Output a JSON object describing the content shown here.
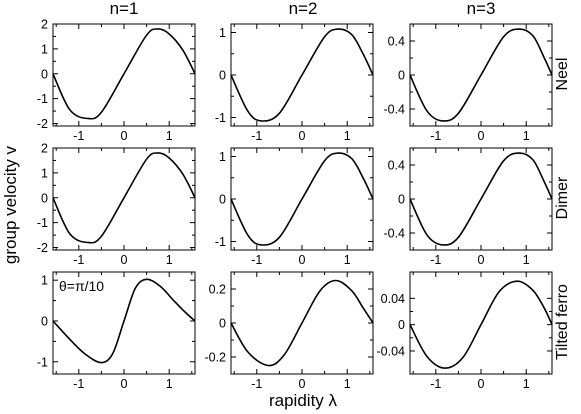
{
  "figure": {
    "ylabel": "group velocity v",
    "xlabel": "rapidity λ",
    "column_titles": [
      "n=1",
      "n=2",
      "n=3"
    ],
    "row_titles": [
      "Neel",
      "Dimer",
      "Tilted ferro"
    ]
  },
  "chart_data": [
    {
      "type": "line",
      "row": "Neel",
      "col": "n=1",
      "xlim": [
        -1.5708,
        1.5708
      ],
      "ylim": [
        -2.1,
        2.0
      ],
      "xticks": [
        -1,
        0,
        1
      ],
      "xtick_labels": [
        "-1",
        "0",
        "1"
      ],
      "yticks": [
        -2,
        -1,
        0,
        1,
        2
      ],
      "ytick_labels": [
        "-2",
        "-1",
        "0",
        "1",
        "2"
      ],
      "series": [
        {
          "x": [
            -1.571,
            -1.2,
            -0.8,
            -0.5,
            0,
            0.5,
            0.75,
            1.0,
            1.3,
            1.571
          ],
          "y": [
            0,
            -1.45,
            -1.8,
            -1.55,
            0,
            1.55,
            1.8,
            1.6,
            0.95,
            0
          ],
          "color": "#000000"
        }
      ]
    },
    {
      "type": "line",
      "row": "Neel",
      "col": "n=2",
      "xlim": [
        -1.5708,
        1.5708
      ],
      "ylim": [
        -1.2,
        1.2
      ],
      "xticks": [
        -1,
        0,
        1
      ],
      "xtick_labels": [
        "-1",
        "0",
        "1"
      ],
      "yticks": [
        -1,
        0,
        1
      ],
      "ytick_labels": [
        "-1",
        "0",
        "1"
      ],
      "series": [
        {
          "x": [
            -1.571,
            -1.2,
            -0.9,
            -0.5,
            0,
            0.5,
            0.8,
            1.1,
            1.35,
            1.571
          ],
          "y": [
            0,
            -0.85,
            -1.08,
            -0.9,
            0,
            0.9,
            1.08,
            0.95,
            0.5,
            0
          ],
          "color": "#000000"
        }
      ]
    },
    {
      "type": "line",
      "row": "Neel",
      "col": "n=3",
      "xlim": [
        -1.5708,
        1.5708
      ],
      "ylim": [
        -0.6,
        0.6
      ],
      "xticks": [
        -1,
        0,
        1
      ],
      "xtick_labels": [
        "-1",
        "0",
        "1"
      ],
      "yticks": [
        -0.4,
        0,
        0.4
      ],
      "ytick_labels": [
        "-0.4",
        "0",
        "0.4"
      ],
      "series": [
        {
          "x": [
            -1.571,
            -1.2,
            -0.85,
            -0.5,
            0,
            0.5,
            0.85,
            1.15,
            1.4,
            1.571
          ],
          "y": [
            0,
            -0.42,
            -0.54,
            -0.45,
            0,
            0.45,
            0.54,
            0.46,
            0.2,
            0
          ],
          "color": "#000000"
        }
      ]
    },
    {
      "type": "line",
      "row": "Dimer",
      "col": "n=1",
      "xlim": [
        -1.5708,
        1.5708
      ],
      "ylim": [
        -2.1,
        2.0
      ],
      "xticks": [
        -1,
        0,
        1
      ],
      "xtick_labels": [
        "-1",
        "0",
        "1"
      ],
      "yticks": [
        -2,
        -1,
        0,
        1,
        2
      ],
      "ytick_labels": [
        "-2",
        "-1",
        "0",
        "1",
        "2"
      ],
      "series": [
        {
          "x": [
            -1.571,
            -1.2,
            -0.8,
            -0.5,
            0,
            0.5,
            0.75,
            1.0,
            1.3,
            1.571
          ],
          "y": [
            0,
            -1.45,
            -1.8,
            -1.55,
            0,
            1.55,
            1.8,
            1.6,
            0.95,
            0
          ],
          "color": "#000000"
        }
      ]
    },
    {
      "type": "line",
      "row": "Dimer",
      "col": "n=2",
      "xlim": [
        -1.5708,
        1.5708
      ],
      "ylim": [
        -1.2,
        1.2
      ],
      "xticks": [
        -1,
        0,
        1
      ],
      "xtick_labels": [
        "-1",
        "0",
        "1"
      ],
      "yticks": [
        -1,
        0,
        1
      ],
      "ytick_labels": [
        "-1",
        "0",
        "1"
      ],
      "series": [
        {
          "x": [
            -1.571,
            -1.2,
            -0.9,
            -0.5,
            0,
            0.5,
            0.8,
            1.1,
            1.35,
            1.571
          ],
          "y": [
            0,
            -0.85,
            -1.08,
            -0.9,
            0,
            0.9,
            1.08,
            0.95,
            0.5,
            0
          ],
          "color": "#000000"
        }
      ]
    },
    {
      "type": "line",
      "row": "Dimer",
      "col": "n=3",
      "xlim": [
        -1.5708,
        1.5708
      ],
      "ylim": [
        -0.6,
        0.6
      ],
      "xticks": [
        -1,
        0,
        1
      ],
      "xtick_labels": [
        "-1",
        "0",
        "1"
      ],
      "yticks": [
        -0.4,
        0,
        0.4
      ],
      "ytick_labels": [
        "-0.4",
        "0",
        "0.4"
      ],
      "series": [
        {
          "x": [
            -1.571,
            -1.2,
            -0.85,
            -0.5,
            0,
            0.5,
            0.85,
            1.15,
            1.4,
            1.571
          ],
          "y": [
            0,
            -0.42,
            -0.54,
            -0.45,
            0,
            0.45,
            0.54,
            0.46,
            0.2,
            0
          ],
          "color": "#000000"
        }
      ]
    },
    {
      "type": "line",
      "row": "Tilted ferro",
      "col": "n=1",
      "xlim": [
        -1.5708,
        1.5708
      ],
      "ylim": [
        -1.3,
        1.2
      ],
      "xticks": [
        -1,
        0,
        1
      ],
      "xtick_labels": [
        "-1",
        "0",
        "1"
      ],
      "yticks": [
        -1,
        0,
        1
      ],
      "ytick_labels": [
        "-1",
        "0",
        "1"
      ],
      "annotation": "θ=π/10",
      "series": [
        {
          "x": [
            -1.571,
            -1.2,
            -0.85,
            -0.5,
            -0.25,
            0,
            0.25,
            0.5,
            0.8,
            1.1,
            1.35,
            1.571
          ],
          "y": [
            0,
            -0.45,
            -0.82,
            -1.02,
            -0.8,
            0,
            0.8,
            1.02,
            0.85,
            0.5,
            0.22,
            0
          ],
          "color": "#000000"
        }
      ]
    },
    {
      "type": "line",
      "row": "Tilted ferro",
      "col": "n=2",
      "xlim": [
        -1.5708,
        1.5708
      ],
      "ylim": [
        -0.3,
        0.3
      ],
      "xticks": [
        -1,
        0,
        1
      ],
      "xtick_labels": [
        "-1",
        "0",
        "1"
      ],
      "yticks": [
        -0.2,
        0,
        0.2
      ],
      "ytick_labels": [
        "-0.2",
        "0",
        "0.2"
      ],
      "series": [
        {
          "x": [
            -1.571,
            -1.2,
            -0.75,
            -0.4,
            0,
            0.4,
            0.75,
            1.1,
            1.35,
            1.571
          ],
          "y": [
            0,
            -0.17,
            -0.25,
            -0.19,
            0,
            0.19,
            0.25,
            0.19,
            0.09,
            0
          ],
          "color": "#000000"
        }
      ]
    },
    {
      "type": "line",
      "row": "Tilted ferro",
      "col": "n=3",
      "xlim": [
        -1.5708,
        1.5708
      ],
      "ylim": [
        -0.075,
        0.08
      ],
      "xticks": [
        -1,
        0,
        1
      ],
      "xtick_labels": [
        "-1",
        "0",
        "1"
      ],
      "yticks": [
        -0.04,
        0,
        0.04
      ],
      "ytick_labels": [
        "-0.04",
        "0",
        "0.04"
      ],
      "series": [
        {
          "x": [
            -1.571,
            -1.2,
            -0.8,
            -0.4,
            0,
            0.4,
            0.8,
            1.15,
            1.4,
            1.571
          ],
          "y": [
            0,
            -0.048,
            -0.066,
            -0.05,
            0,
            0.05,
            0.066,
            0.052,
            0.025,
            0
          ],
          "color": "#000000"
        }
      ]
    }
  ]
}
